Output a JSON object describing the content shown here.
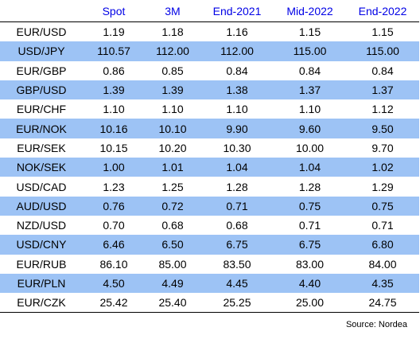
{
  "table": {
    "headers": [
      "",
      "Spot",
      "3M",
      "End-2021",
      "Mid-2022",
      "End-2022"
    ],
    "rows": [
      {
        "pair": "EUR/USD",
        "values": [
          "1.19",
          "1.18",
          "1.16",
          "1.15",
          "1.15"
        ]
      },
      {
        "pair": "USD/JPY",
        "values": [
          "110.57",
          "112.00",
          "112.00",
          "115.00",
          "115.00"
        ]
      },
      {
        "pair": "EUR/GBP",
        "values": [
          "0.86",
          "0.85",
          "0.84",
          "0.84",
          "0.84"
        ]
      },
      {
        "pair": "GBP/USD",
        "values": [
          "1.39",
          "1.39",
          "1.38",
          "1.37",
          "1.37"
        ]
      },
      {
        "pair": "EUR/CHF",
        "values": [
          "1.10",
          "1.10",
          "1.10",
          "1.10",
          "1.12"
        ]
      },
      {
        "pair": "EUR/NOK",
        "values": [
          "10.16",
          "10.10",
          "9.90",
          "9.60",
          "9.50"
        ]
      },
      {
        "pair": "EUR/SEK",
        "values": [
          "10.15",
          "10.20",
          "10.30",
          "10.00",
          "9.70"
        ]
      },
      {
        "pair": "NOK/SEK",
        "values": [
          "1.00",
          "1.01",
          "1.04",
          "1.04",
          "1.02"
        ]
      },
      {
        "pair": "USD/CAD",
        "values": [
          "1.23",
          "1.25",
          "1.28",
          "1.28",
          "1.29"
        ]
      },
      {
        "pair": "AUD/USD",
        "values": [
          "0.76",
          "0.72",
          "0.71",
          "0.75",
          "0.75"
        ]
      },
      {
        "pair": "NZD/USD",
        "values": [
          "0.70",
          "0.68",
          "0.68",
          "0.71",
          "0.71"
        ]
      },
      {
        "pair": "USD/CNY",
        "values": [
          "6.46",
          "6.50",
          "6.75",
          "6.75",
          "6.80"
        ]
      },
      {
        "pair": "EUR/RUB",
        "values": [
          "86.10",
          "85.00",
          "83.50",
          "83.00",
          "84.00"
        ]
      },
      {
        "pair": "EUR/PLN",
        "values": [
          "4.50",
          "4.49",
          "4.45",
          "4.40",
          "4.35"
        ]
      },
      {
        "pair": "EUR/CZK",
        "values": [
          "25.42",
          "25.40",
          "25.25",
          "25.00",
          "24.75"
        ]
      }
    ]
  },
  "source": "Source: Nordea",
  "colors": {
    "header_text": "#0000e6",
    "row_shade": "#9dc3f5"
  }
}
